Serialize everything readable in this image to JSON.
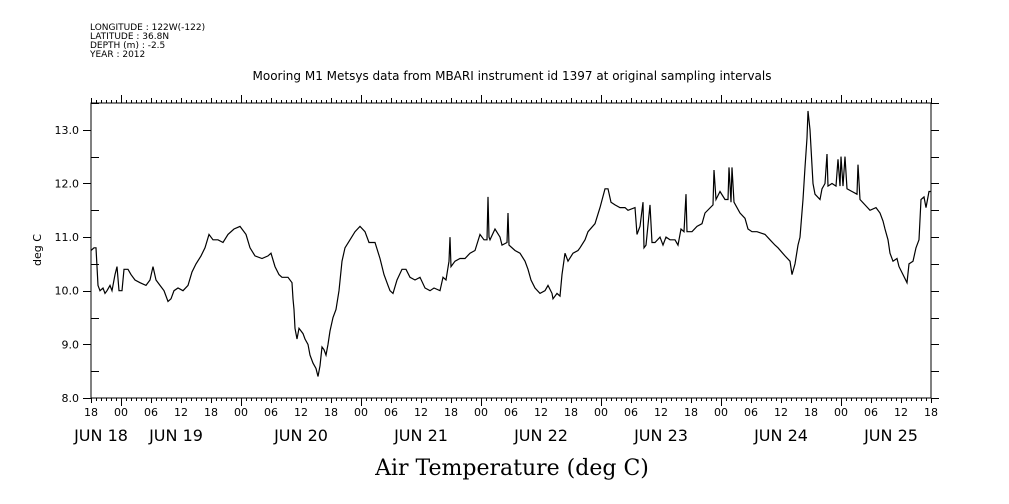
{
  "header": {
    "longitude": "LONGITUDE : 122W(-122)",
    "latitude": "LATITUDE : 36.8N",
    "depth": "DEPTH (m) : -2.5",
    "year": "YEAR : 2012"
  },
  "chart_data": {
    "type": "line",
    "title": "Mooring M1 Metsys data from MBARI instrument id 1397 at original sampling intervals",
    "xlabel": "Air Temperature (deg C)",
    "ylabel": "deg C",
    "ylim": [
      8.0,
      13.5
    ],
    "yticks": [
      "8.0",
      "9.0",
      "10.0",
      "11.0",
      "12.0",
      "13.0"
    ],
    "x_units": "hours since JUN 18 18:00 2012",
    "xlim": [
      0,
      168
    ],
    "hour_tick_labels": [
      "18",
      "00",
      "06",
      "12",
      "18",
      "00",
      "06",
      "12",
      "18",
      "00",
      "06",
      "12",
      "18",
      "00",
      "06",
      "12",
      "18",
      "00",
      "06",
      "12",
      "18",
      "00",
      "06",
      "12",
      "18",
      "00",
      "06",
      "12",
      "18"
    ],
    "date_labels": [
      "JUN 18",
      "JUN 19",
      "JUN 20",
      "JUN 21",
      "JUN 22",
      "JUN 23",
      "JUN 24",
      "JUN 25"
    ],
    "series": [
      {
        "name": "Air Temperature",
        "color": "#000000",
        "points": [
          [
            0,
            10.75
          ],
          [
            0.6,
            10.8
          ],
          [
            1,
            10.8
          ],
          [
            1.4,
            10.1
          ],
          [
            1.8,
            10.0
          ],
          [
            2.4,
            10.05
          ],
          [
            2.8,
            9.95
          ],
          [
            3.2,
            10.0
          ],
          [
            3.8,
            10.1
          ],
          [
            4.2,
            10.0
          ],
          [
            4.8,
            10.3
          ],
          [
            5.2,
            10.45
          ],
          [
            5.6,
            10.0
          ],
          [
            6.2,
            10.0
          ],
          [
            6.6,
            10.4
          ],
          [
            7.4,
            10.4
          ],
          [
            8,
            10.3
          ],
          [
            8.8,
            10.2
          ],
          [
            9.8,
            10.15
          ],
          [
            11,
            10.1
          ],
          [
            11.8,
            10.2
          ],
          [
            12.4,
            10.45
          ],
          [
            13,
            10.2
          ],
          [
            13.8,
            10.1
          ],
          [
            14.6,
            10.0
          ],
          [
            15.4,
            9.8
          ],
          [
            16,
            9.85
          ],
          [
            16.6,
            10.0
          ],
          [
            17.4,
            10.05
          ],
          [
            18.4,
            10.0
          ],
          [
            19.4,
            10.1
          ],
          [
            20.2,
            10.35
          ],
          [
            21,
            10.5
          ],
          [
            22,
            10.65
          ],
          [
            22.8,
            10.8
          ],
          [
            23.6,
            11.05
          ],
          [
            24.4,
            10.95
          ],
          [
            25.4,
            10.95
          ],
          [
            26.4,
            10.9
          ],
          [
            27.4,
            11.05
          ],
          [
            28.6,
            11.15
          ],
          [
            29.8,
            11.2
          ],
          [
            31,
            11.05
          ],
          [
            31.8,
            10.8
          ],
          [
            32.8,
            10.65
          ],
          [
            34.2,
            10.6
          ],
          [
            35.4,
            10.65
          ],
          [
            36,
            10.7
          ],
          [
            36.8,
            10.45
          ],
          [
            37.6,
            10.3
          ],
          [
            38.2,
            10.25
          ],
          [
            39.4,
            10.25
          ],
          [
            40.2,
            10.15
          ],
          [
            40.4,
            9.85
          ],
          [
            40.6,
            9.65
          ],
          [
            40.8,
            9.3
          ],
          [
            41.2,
            9.1
          ],
          [
            41.6,
            9.3
          ],
          [
            42.4,
            9.2
          ],
          [
            42.8,
            9.1
          ],
          [
            43.4,
            9.0
          ],
          [
            43.8,
            8.8
          ],
          [
            44.4,
            8.65
          ],
          [
            45,
            8.55
          ],
          [
            45.4,
            8.4
          ],
          [
            45.8,
            8.6
          ],
          [
            46.2,
            8.95
          ],
          [
            46.6,
            8.9
          ],
          [
            47,
            8.8
          ],
          [
            47.4,
            9.0
          ],
          [
            47.8,
            9.25
          ],
          [
            48.4,
            9.5
          ],
          [
            49,
            9.65
          ],
          [
            49.6,
            10.0
          ],
          [
            50.2,
            10.55
          ],
          [
            50.8,
            10.8
          ],
          [
            51.8,
            10.95
          ],
          [
            52.8,
            11.1
          ],
          [
            53.8,
            11.2
          ],
          [
            54.8,
            11.1
          ],
          [
            55.6,
            10.9
          ],
          [
            56.8,
            10.9
          ],
          [
            57.8,
            10.6
          ],
          [
            58.6,
            10.3
          ],
          [
            59.4,
            10.1
          ],
          [
            59.8,
            10.0
          ],
          [
            60.4,
            9.95
          ],
          [
            61.2,
            10.2
          ],
          [
            62.2,
            10.4
          ],
          [
            63,
            10.4
          ],
          [
            63.8,
            10.25
          ],
          [
            64.8,
            10.2
          ],
          [
            65.8,
            10.25
          ],
          [
            66.8,
            10.05
          ],
          [
            67.8,
            10.0
          ],
          [
            68.6,
            10.05
          ],
          [
            69.8,
            10.0
          ],
          [
            70.4,
            10.25
          ],
          [
            71,
            10.2
          ],
          [
            71.6,
            10.55
          ],
          [
            71.8,
            11.0
          ],
          [
            72,
            10.45
          ],
          [
            72.8,
            10.55
          ],
          [
            73.8,
            10.6
          ],
          [
            74.8,
            10.6
          ],
          [
            75.8,
            10.7
          ],
          [
            76.8,
            10.75
          ],
          [
            77.8,
            11.05
          ],
          [
            78.6,
            10.95
          ],
          [
            79.2,
            10.95
          ],
          [
            79.4,
            11.75
          ],
          [
            79.6,
            11.0
          ],
          [
            79.8,
            10.95
          ],
          [
            80.8,
            11.15
          ],
          [
            81.8,
            11.0
          ],
          [
            82.2,
            10.85
          ],
          [
            83.2,
            10.9
          ],
          [
            83.4,
            11.45
          ],
          [
            83.6,
            10.85
          ],
          [
            84.8,
            10.75
          ],
          [
            85.8,
            10.7
          ],
          [
            86.8,
            10.55
          ],
          [
            87.4,
            10.4
          ],
          [
            88,
            10.2
          ],
          [
            88.8,
            10.05
          ],
          [
            89.8,
            9.95
          ],
          [
            90.8,
            10.0
          ],
          [
            91.4,
            10.1
          ],
          [
            92.2,
            9.95
          ],
          [
            92.4,
            9.85
          ],
          [
            93.2,
            9.95
          ],
          [
            93.8,
            9.9
          ],
          [
            94.2,
            10.3
          ],
          [
            94.8,
            10.7
          ],
          [
            95.4,
            10.55
          ],
          [
            96.4,
            10.7
          ],
          [
            97.4,
            10.75
          ],
          [
            97.8,
            10.8
          ],
          [
            98.8,
            10.95
          ],
          [
            99.4,
            11.1
          ],
          [
            100.8,
            11.25
          ],
          [
            101.8,
            11.55
          ],
          [
            102.8,
            11.9
          ],
          [
            103.4,
            11.9
          ],
          [
            104,
            11.65
          ],
          [
            104.8,
            11.6
          ],
          [
            105.8,
            11.55
          ],
          [
            106.8,
            11.55
          ],
          [
            107.4,
            11.5
          ],
          [
            108.8,
            11.55
          ],
          [
            109.2,
            11.05
          ],
          [
            109.6,
            11.15
          ],
          [
            109.8,
            11.2
          ],
          [
            110.4,
            11.65
          ],
          [
            110.6,
            10.8
          ],
          [
            111,
            10.85
          ],
          [
            111.8,
            11.6
          ],
          [
            112.2,
            10.9
          ],
          [
            112.8,
            10.9
          ],
          [
            113.8,
            11.0
          ],
          [
            114.4,
            10.85
          ],
          [
            115,
            11.0
          ],
          [
            115.8,
            10.95
          ],
          [
            116.8,
            10.95
          ],
          [
            117.4,
            10.85
          ],
          [
            118,
            11.15
          ],
          [
            118.6,
            11.1
          ],
          [
            119,
            11.8
          ],
          [
            119.2,
            11.1
          ],
          [
            120.2,
            11.1
          ],
          [
            121.2,
            11.2
          ],
          [
            122.2,
            11.25
          ],
          [
            122.8,
            11.45
          ],
          [
            124.4,
            11.6
          ],
          [
            124.6,
            12.25
          ],
          [
            125,
            11.7
          ],
          [
            125.8,
            11.85
          ],
          [
            126.8,
            11.7
          ],
          [
            127.4,
            11.7
          ],
          [
            127.6,
            12.3
          ],
          [
            128,
            11.65
          ],
          [
            128.2,
            12.3
          ],
          [
            128.6,
            11.65
          ],
          [
            129.8,
            11.45
          ],
          [
            130.8,
            11.35
          ],
          [
            131.4,
            11.15
          ],
          [
            132.2,
            11.1
          ],
          [
            133.2,
            11.1
          ],
          [
            134.8,
            11.05
          ],
          [
            135.8,
            10.95
          ],
          [
            136.8,
            10.85
          ],
          [
            137.4,
            10.8
          ],
          [
            138.8,
            10.65
          ],
          [
            139.8,
            10.55
          ],
          [
            140.2,
            10.3
          ],
          [
            140.8,
            10.5
          ],
          [
            141.4,
            10.85
          ],
          [
            141.8,
            11.0
          ],
          [
            142.4,
            11.7
          ],
          [
            142.8,
            12.3
          ],
          [
            143.2,
            12.85
          ],
          [
            143.4,
            13.35
          ],
          [
            143.8,
            13.0
          ],
          [
            144.4,
            12.0
          ],
          [
            144.8,
            11.8
          ],
          [
            145.8,
            11.7
          ],
          [
            146.2,
            11.9
          ],
          [
            146.8,
            12.0
          ],
          [
            147.2,
            12.55
          ],
          [
            147.4,
            11.95
          ],
          [
            148.2,
            12.0
          ],
          [
            149,
            11.95
          ],
          [
            149.4,
            12.45
          ],
          [
            149.8,
            11.95
          ],
          [
            150,
            12.5
          ],
          [
            150.4,
            11.95
          ],
          [
            150.8,
            12.5
          ],
          [
            151.2,
            11.9
          ],
          [
            152.2,
            11.85
          ],
          [
            153.2,
            11.8
          ],
          [
            153.4,
            12.35
          ],
          [
            153.8,
            11.7
          ],
          [
            154.8,
            11.6
          ],
          [
            155.8,
            11.5
          ],
          [
            157,
            11.55
          ],
          [
            157.8,
            11.45
          ],
          [
            158.4,
            11.3
          ],
          [
            158.8,
            11.15
          ],
          [
            159.4,
            10.95
          ],
          [
            159.8,
            10.7
          ],
          [
            160.4,
            10.55
          ],
          [
            161.2,
            10.6
          ],
          [
            161.6,
            10.45
          ],
          [
            162.4,
            10.3
          ],
          [
            163.2,
            10.15
          ],
          [
            163.6,
            10.5
          ],
          [
            164.4,
            10.55
          ],
          [
            165,
            10.8
          ],
          [
            165.6,
            10.95
          ],
          [
            166,
            11.7
          ],
          [
            166.6,
            11.75
          ],
          [
            167,
            11.55
          ],
          [
            167.6,
            11.85
          ],
          [
            168,
            11.85
          ]
        ]
      }
    ]
  }
}
